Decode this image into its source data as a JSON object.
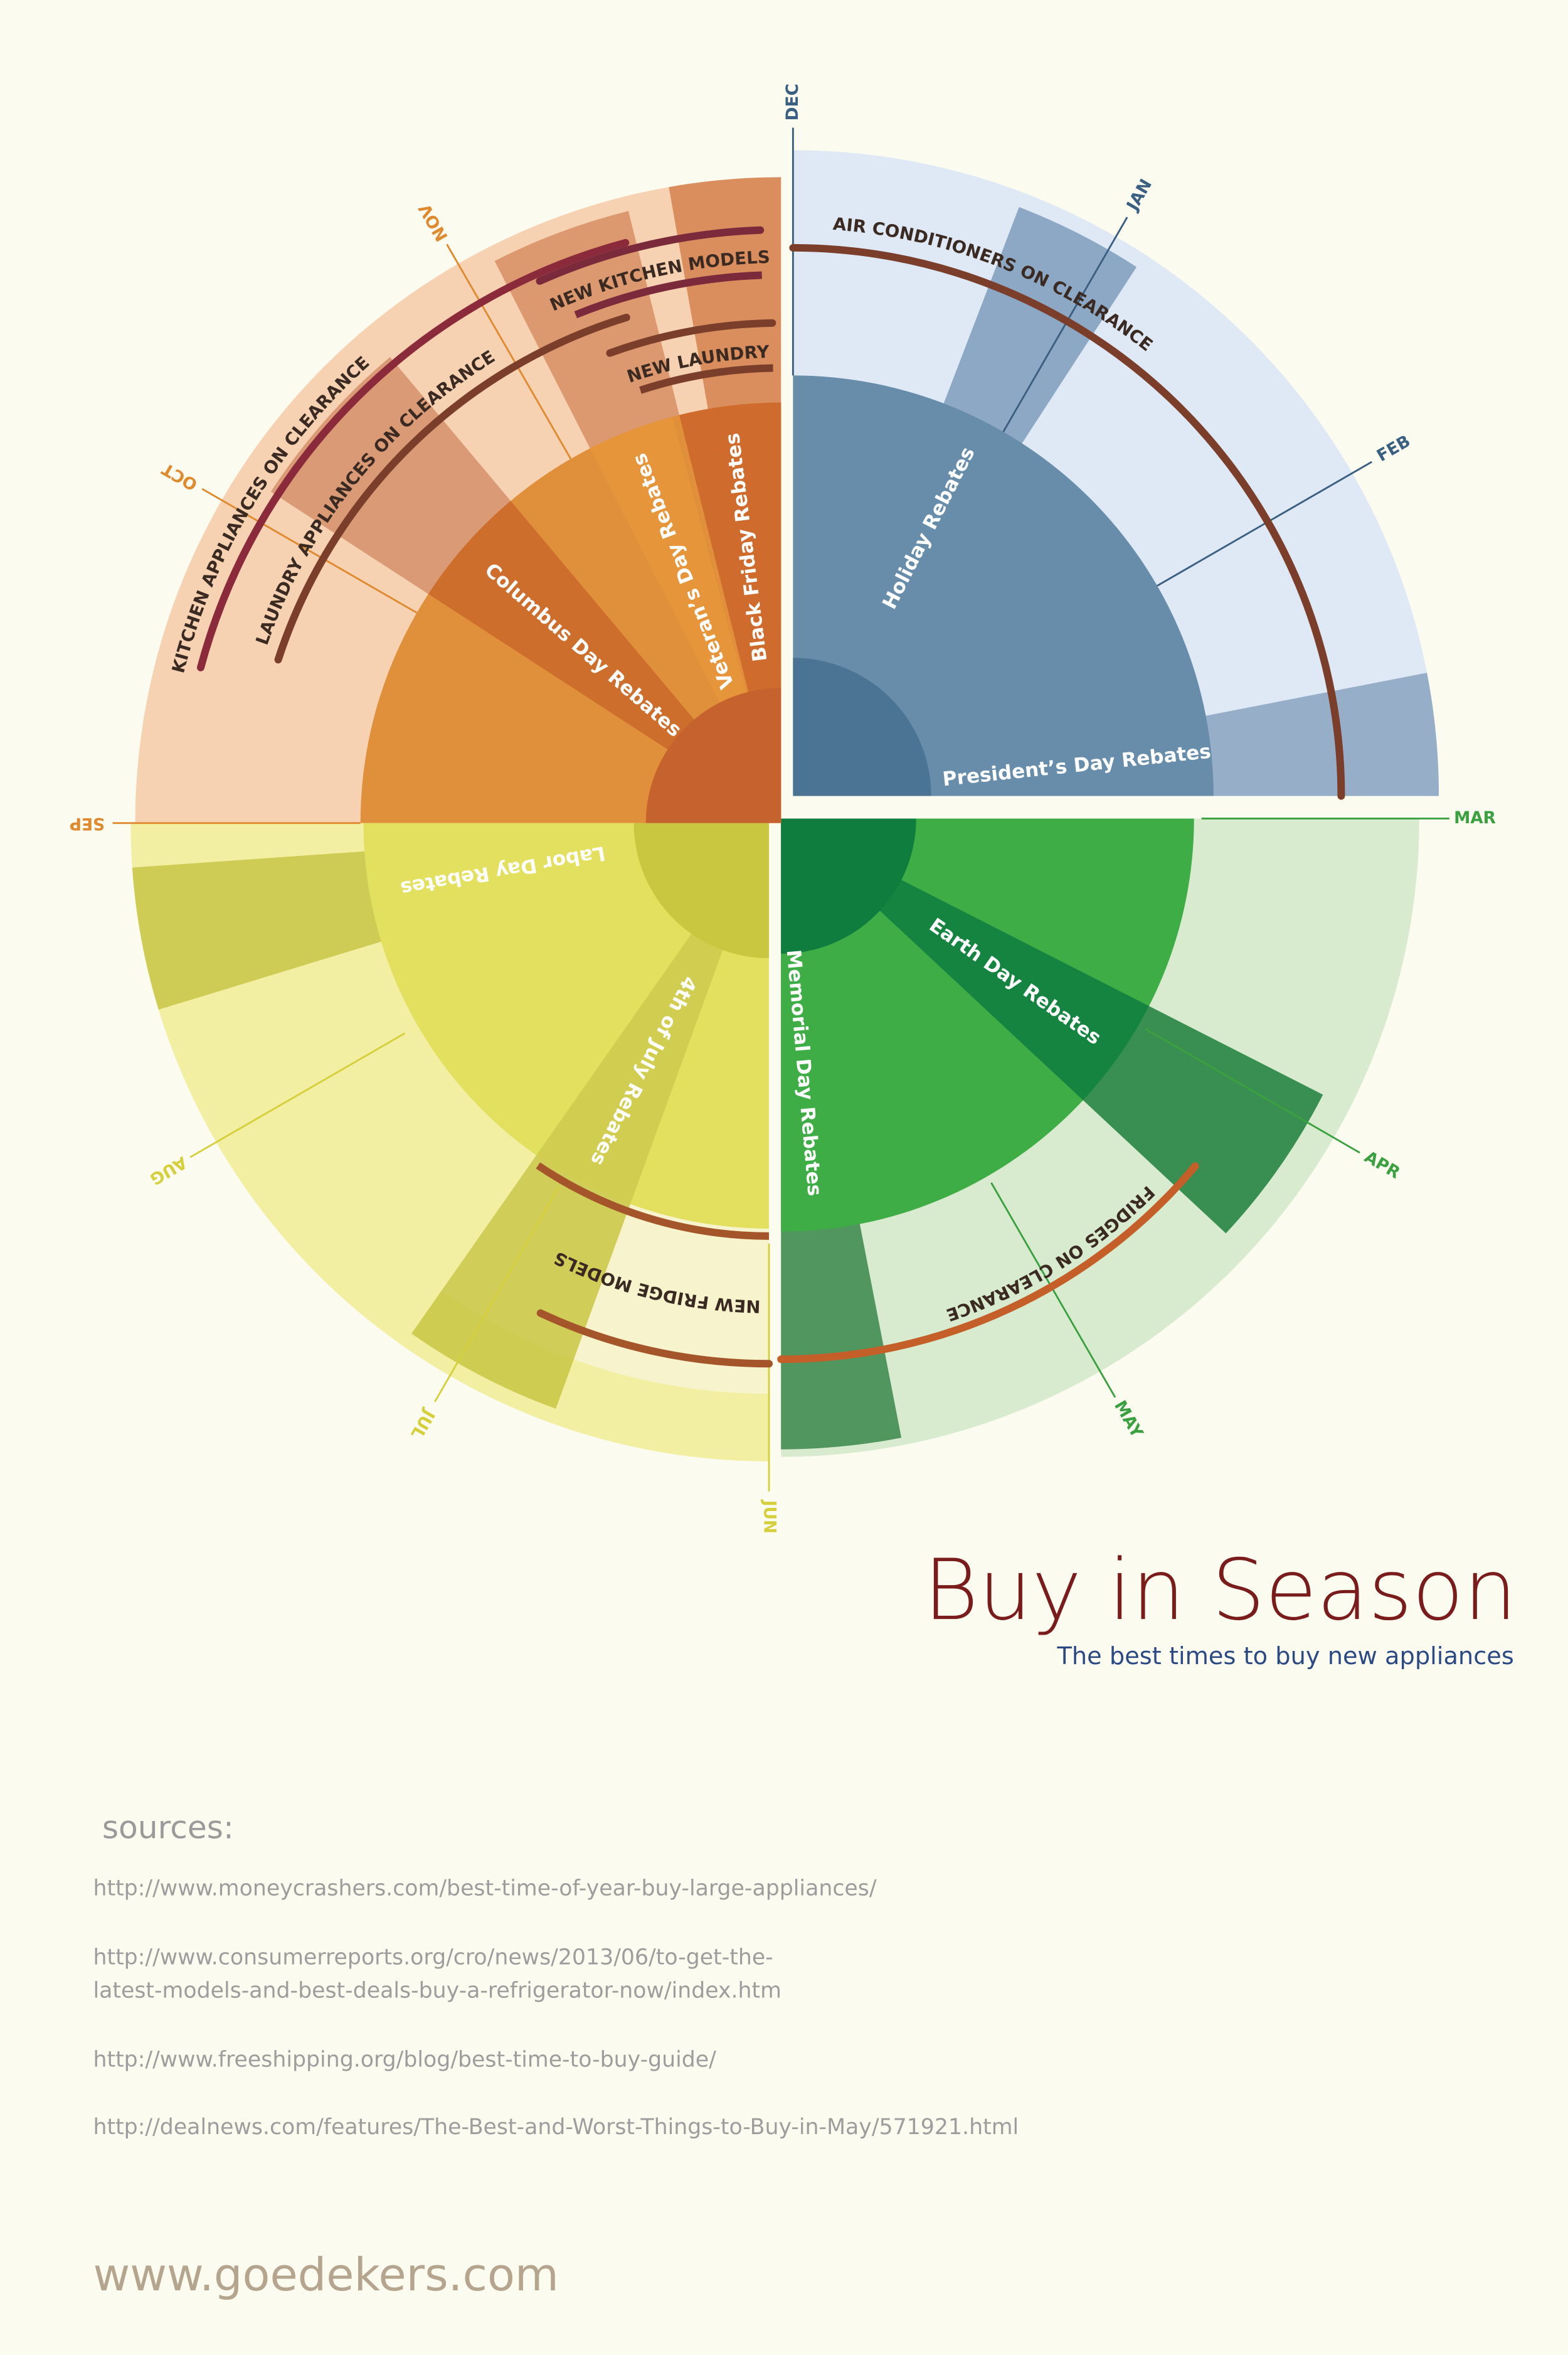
{
  "months": [
    "DEC",
    "JAN",
    "FEB",
    "MAR",
    "APR",
    "MAY",
    "JUN",
    "JUL",
    "AUG",
    "SEP",
    "OCT",
    "NOV"
  ],
  "quadrants": [
    {
      "rebates": [
        "Holiday Rebates",
        "President’s Day Rebates"
      ],
      "clearance": [
        "AIR CONDITIONERS ON CLEARANCE"
      ]
    },
    {
      "rebates": [
        "Earth Day Rebates",
        "Memorial Day Rebates"
      ],
      "clearance": [
        "FRIDGES ON CLEARANCE"
      ]
    },
    {
      "rebates": [
        "4th of July Rebates",
        "Labor Day Rebates"
      ],
      "new_models": [
        "NEW FRIDGE MODELS"
      ]
    },
    {
      "rebates": [
        "Columbus Day Rebates",
        "Veteran’s Day Rebates",
        "Black Friday Rebates"
      ],
      "clearance": [
        "KITCHEN APPLIANCES ON CLEARANCE",
        "LAUNDRY APPLIANCES ON CLEARANCE"
      ],
      "new_models": [
        "NEW KITCHEN MODELS",
        "NEW LAUNDRY MODELS"
      ]
    }
  ],
  "title": "Buy in Season",
  "subtitle": "The best times to buy new appliances",
  "sources": {
    "heading": "sources:",
    "links": [
      [
        "http://www.moneycrashers.com/best-time-of-year-buy-large-appliances/"
      ],
      [
        "http://www.consumerreports.org/cro/news/2013/06/to-get-the-",
        "latest-models-and-best-deals-buy-a-refrigerator-now/index.htm"
      ],
      [
        "http://www.freeshipping.org/blog/best-time-to-buy-guide/"
      ],
      [
        "http://dealnews.com/features/The-Best-and-Worst-Things-to-Buy-in-May/571921.html"
      ]
    ]
  },
  "website": "www.goedekers.com"
}
